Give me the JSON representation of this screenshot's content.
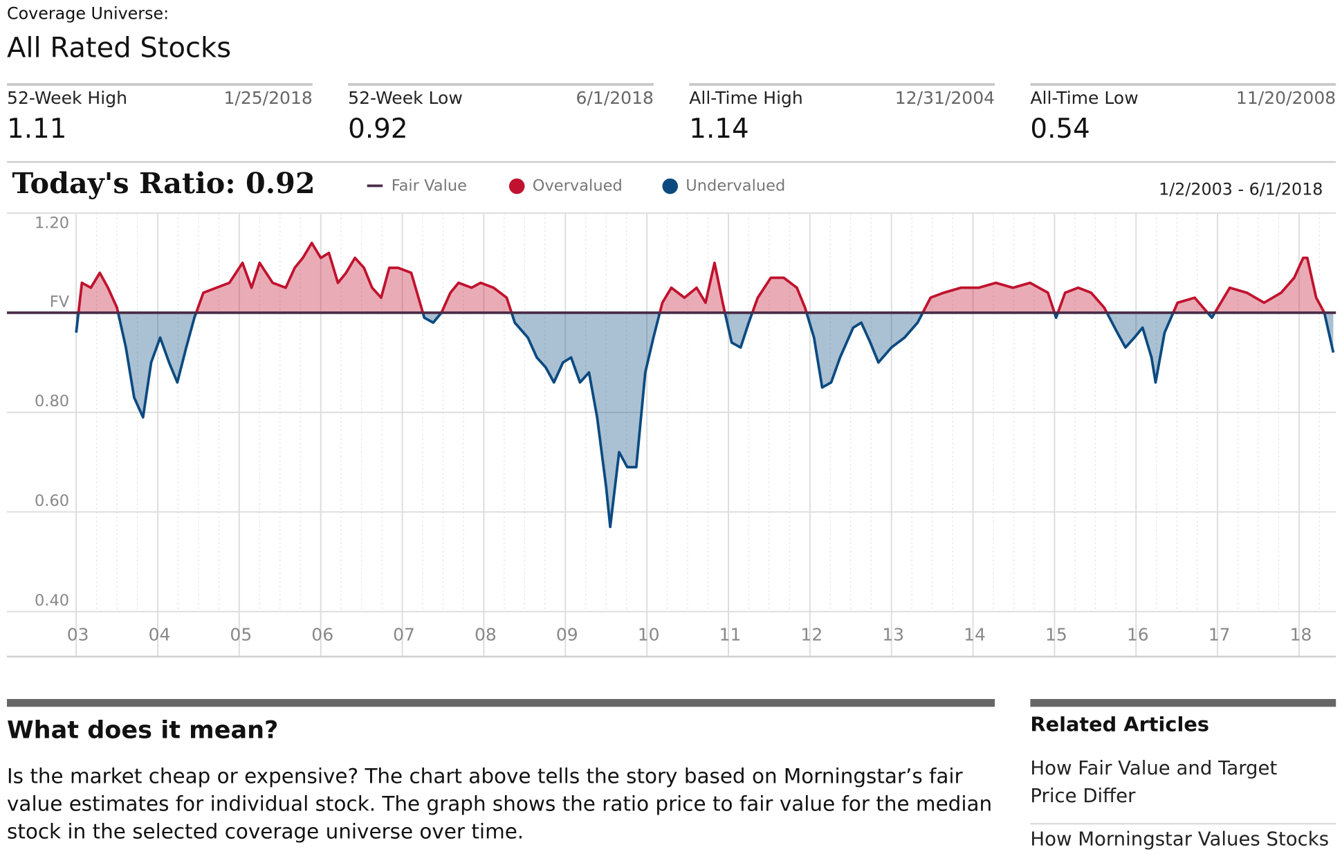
{
  "header": {
    "label": "Coverage Universe:",
    "title": "All Rated Stocks"
  },
  "stats": [
    {
      "label": "52-Week High",
      "date": "1/25/2018",
      "value": 1.11
    },
    {
      "label": "52-Week Low",
      "date": "6/1/2018",
      "value": 0.92
    },
    {
      "label": "All-Time High",
      "date": "12/31/2004",
      "value": 1.14
    },
    {
      "label": "All-Time Low",
      "date": "11/20/2008",
      "value": 0.54
    }
  ],
  "chart_data": {
    "type": "line",
    "title": "Today's Ratio: 0.92",
    "date_range": "1/2/2003 - 6/1/2018",
    "legend": [
      {
        "name": "Fair Value",
        "color": "#4b2d48"
      },
      {
        "name": "Overvalued",
        "color": "#c0122e"
      },
      {
        "name": "Undervalued",
        "color": "#0b4a80"
      }
    ],
    "fair_value": 1,
    "x": [
      2003.0,
      2003.07,
      2003.18,
      2003.29,
      2003.39,
      2003.5,
      2003.61,
      2003.71,
      2003.82,
      2003.92,
      2004.03,
      2004.14,
      2004.24,
      2004.35,
      2004.45,
      2004.56,
      2004.72,
      2004.88,
      2005.04,
      2005.15,
      2005.25,
      2005.41,
      2005.57,
      2005.68,
      2005.78,
      2005.89,
      2006.0,
      2006.1,
      2006.21,
      2006.31,
      2006.42,
      2006.53,
      2006.63,
      2006.74,
      2006.84,
      2006.95,
      2007.11,
      2007.27,
      2007.38,
      2007.48,
      2007.59,
      2007.69,
      2007.85,
      2007.96,
      2008.12,
      2008.28,
      2008.38,
      2008.54,
      2008.65,
      2008.76,
      2008.86,
      2008.97,
      2009.07,
      2009.18,
      2009.29,
      2009.39,
      2009.5,
      2009.55,
      2009.66,
      2009.76,
      2009.87,
      2009.98,
      2010.08,
      2010.19,
      2010.3,
      2010.46,
      2010.61,
      2010.72,
      2010.83,
      2010.93,
      2011.04,
      2011.15,
      2011.25,
      2011.36,
      2011.52,
      2011.68,
      2011.84,
      2011.94,
      2012.05,
      2012.15,
      2012.26,
      2012.37,
      2012.53,
      2012.63,
      2012.74,
      2012.84,
      2013.0,
      2013.16,
      2013.32,
      2013.48,
      2013.64,
      2013.85,
      2014.07,
      2014.28,
      2014.49,
      2014.7,
      2014.92,
      2015.02,
      2015.13,
      2015.29,
      2015.45,
      2015.61,
      2015.77,
      2015.87,
      2015.98,
      2016.08,
      2016.19,
      2016.24,
      2016.35,
      2016.51,
      2016.72,
      2016.93,
      2017.15,
      2017.36,
      2017.57,
      2017.78,
      2017.94,
      2018.05,
      2018.1,
      2018.21,
      2018.31,
      2018.42
    ],
    "values": [
      0.96,
      1.06,
      1.05,
      1.08,
      1.05,
      1.01,
      0.93,
      0.83,
      0.79,
      0.9,
      0.95,
      0.9,
      0.86,
      0.93,
      0.99,
      1.04,
      1.05,
      1.06,
      1.1,
      1.05,
      1.1,
      1.06,
      1.05,
      1.09,
      1.11,
      1.14,
      1.11,
      1.12,
      1.06,
      1.08,
      1.11,
      1.09,
      1.05,
      1.03,
      1.09,
      1.09,
      1.08,
      0.99,
      0.98,
      1.0,
      1.04,
      1.06,
      1.05,
      1.06,
      1.05,
      1.03,
      0.98,
      0.95,
      0.91,
      0.89,
      0.86,
      0.9,
      0.91,
      0.86,
      0.88,
      0.79,
      0.65,
      0.57,
      0.72,
      0.69,
      0.69,
      0.88,
      0.95,
      1.02,
      1.05,
      1.03,
      1.05,
      1.02,
      1.1,
      1.02,
      0.94,
      0.93,
      0.98,
      1.03,
      1.07,
      1.07,
      1.05,
      1.01,
      0.95,
      0.85,
      0.86,
      0.91,
      0.97,
      0.98,
      0.94,
      0.9,
      0.93,
      0.95,
      0.98,
      1.03,
      1.04,
      1.05,
      1.05,
      1.06,
      1.05,
      1.06,
      1.04,
      0.99,
      1.04,
      1.05,
      1.04,
      1.01,
      0.96,
      0.93,
      0.95,
      0.97,
      0.91,
      0.86,
      0.96,
      1.02,
      1.03,
      0.99,
      1.05,
      1.04,
      1.02,
      1.04,
      1.07,
      1.11,
      1.11,
      1.03,
      1.0,
      0.92
    ],
    "xlim": [
      2003,
      2018.42
    ],
    "xticks": [
      {
        "value": 2003,
        "label": "03"
      },
      {
        "value": 2004,
        "label": "04"
      },
      {
        "value": 2005,
        "label": "05"
      },
      {
        "value": 2006,
        "label": "06"
      },
      {
        "value": 2007,
        "label": "07"
      },
      {
        "value": 2008,
        "label": "08"
      },
      {
        "value": 2009,
        "label": "09"
      },
      {
        "value": 2010,
        "label": "10"
      },
      {
        "value": 2011,
        "label": "11"
      },
      {
        "value": 2012,
        "label": "12"
      },
      {
        "value": 2013,
        "label": "13"
      },
      {
        "value": 2014,
        "label": "14"
      },
      {
        "value": 2015,
        "label": "15"
      },
      {
        "value": 2016,
        "label": "16"
      },
      {
        "value": 2017,
        "label": "17"
      },
      {
        "value": 2018,
        "label": "18"
      }
    ],
    "ylim": [
      0.4,
      1.2
    ],
    "yticks": [
      {
        "value": 0.4,
        "label": "0.40"
      },
      {
        "value": 0.6,
        "label": "0.60"
      },
      {
        "value": 0.8,
        "label": "0.80"
      },
      {
        "value": 1.0,
        "label": "FV"
      },
      {
        "value": 1.2,
        "label": "1.20"
      }
    ],
    "grid": true
  },
  "article": {
    "heading": "What does it mean?",
    "body": "Is the market cheap or expensive? The chart above tells the story based on Morningstar’s fair value estimates for individual stock. The graph shows the ratio price to fair value for the median stock in the selected coverage universe over time."
  },
  "related": {
    "heading": "Related Articles",
    "links": [
      "How Fair Value and Target Price Differ",
      "How Morningstar Values Stocks"
    ]
  }
}
